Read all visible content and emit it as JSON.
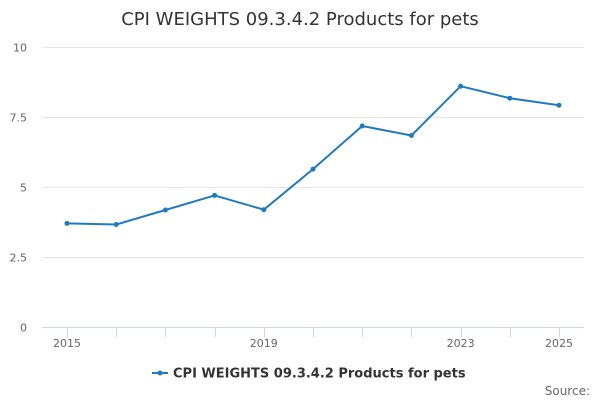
{
  "chart_data": {
    "type": "line",
    "title": "CPI WEIGHTS 09.3.4.2 Products for pets",
    "xlabel": "",
    "ylabel": "",
    "x": [
      2015,
      2016,
      2017,
      2018,
      2019,
      2020,
      2021,
      2022,
      2023,
      2024,
      2025
    ],
    "x_tick_labels": [
      "2015",
      "2019",
      "2023",
      "2025"
    ],
    "y_ticks": [
      0,
      2.5,
      5,
      7.5,
      10
    ],
    "y_tick_labels": [
      "0",
      "2.5",
      "5",
      "7.5",
      "10"
    ],
    "ylim": [
      0,
      10
    ],
    "xlim": [
      2015,
      2025
    ],
    "grid": true,
    "legend_position": "bottom-center",
    "series": [
      {
        "name": "CPI WEIGHTS 09.3.4.2 Products for pets",
        "values": [
          3.7,
          3.66,
          4.18,
          4.7,
          4.19,
          5.64,
          7.18,
          6.84,
          8.6,
          8.17,
          7.92
        ],
        "color": "#1f7bbf"
      }
    ]
  },
  "credit": "Source:"
}
